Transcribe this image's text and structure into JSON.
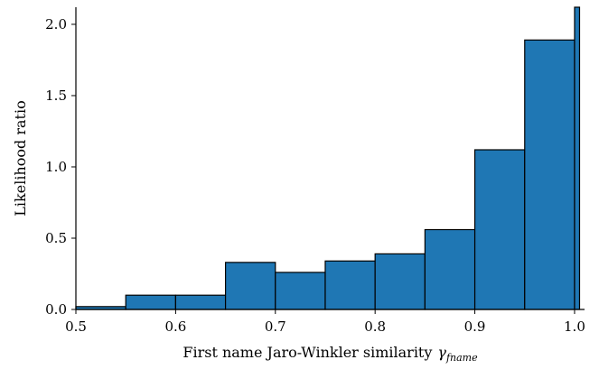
{
  "chart_data": {
    "type": "bar",
    "subtype": "histogram",
    "title": "",
    "xlabel": "First name Jaro-Winkler similarity",
    "xlabel_symbol": "γ",
    "xlabel_subscript": "fname",
    "ylabel": "Likelihood ratio",
    "xlim": [
      0.5,
      1.01
    ],
    "ylim": [
      0,
      2.12
    ],
    "xticks": [
      0.5,
      0.6,
      0.7,
      0.8,
      0.9,
      1.0
    ],
    "xtick_labels": [
      "0.5",
      "0.6",
      "0.7",
      "0.8",
      "0.9",
      "1.0"
    ],
    "yticks": [
      0.0,
      0.5,
      1.0,
      1.5,
      2.0
    ],
    "ytick_labels": [
      "0.0",
      "0.5",
      "1.0",
      "1.5",
      "2.0"
    ],
    "bar_color": "#1f77b4",
    "edge_color": "#000000",
    "grid": false,
    "bins": [
      {
        "x0": 0.5,
        "x1": 0.55,
        "value": 0.02
      },
      {
        "x0": 0.55,
        "x1": 0.6,
        "value": 0.1
      },
      {
        "x0": 0.6,
        "x1": 0.65,
        "value": 0.1
      },
      {
        "x0": 0.65,
        "x1": 0.7,
        "value": 0.33
      },
      {
        "x0": 0.7,
        "x1": 0.75,
        "value": 0.26
      },
      {
        "x0": 0.75,
        "x1": 0.8,
        "value": 0.34
      },
      {
        "x0": 0.8,
        "x1": 0.85,
        "value": 0.39
      },
      {
        "x0": 0.85,
        "x1": 0.9,
        "value": 0.56
      },
      {
        "x0": 0.9,
        "x1": 0.95,
        "value": 1.12
      },
      {
        "x0": 0.95,
        "x1": 1.0,
        "value": 1.89
      },
      {
        "x0": 1.0,
        "x1": 1.005,
        "value": 2.12
      }
    ]
  }
}
